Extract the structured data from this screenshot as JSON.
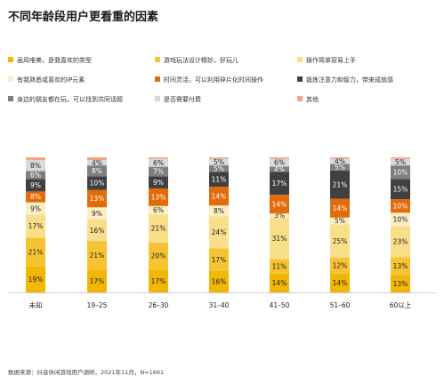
{
  "title": "不同年龄段用户更看重的因素",
  "source": "数据来源：抖音休闲游戏用户调研，2021年11月，N=1661",
  "chart_data": {
    "type": "bar",
    "stacked": true,
    "normalized": true,
    "legend_position": "top",
    "categories": [
      "未知",
      "19–25",
      "26–30",
      "31–40",
      "41–50",
      "51–60",
      "60以上"
    ],
    "series": [
      {
        "name": "画风唯美，是我喜欢的类型",
        "color": "#F2B705",
        "values": [
          19,
          17,
          17,
          16,
          14,
          14,
          13
        ]
      },
      {
        "name": "游戏玩法设计精妙，好玩儿",
        "color": "#F6C433",
        "values": [
          21,
          21,
          20,
          17,
          11,
          12,
          13
        ]
      },
      {
        "name": "操作简单容易上手",
        "color": "#F9DF8A",
        "values": [
          17,
          16,
          21,
          24,
          31,
          25,
          23
        ]
      },
      {
        "name": "有我熟悉或喜欢的IP元素",
        "color": "#FCEFC4",
        "values": [
          9,
          9,
          6,
          8,
          3,
          5,
          10
        ]
      },
      {
        "name": "时间灵活，可以利用碎片化时间操作",
        "color": "#E36C0A",
        "values": [
          8,
          13,
          13,
          14,
          14,
          14,
          10
        ]
      },
      {
        "name": "锻炼注意力和智力，带来成就感",
        "color": "#404040",
        "values": [
          9,
          10,
          9,
          11,
          17,
          21,
          15
        ]
      },
      {
        "name": "身边的朋友都在玩，可以找到共同话题",
        "color": "#7F7F7F",
        "values": [
          6,
          8,
          7,
          5,
          4,
          5,
          10
        ]
      },
      {
        "name": "是否需要付费",
        "color": "#D9D9D9",
        "values": [
          8,
          4,
          6,
          5,
          6,
          4,
          5
        ]
      },
      {
        "name": "其他",
        "color": "#F4A582",
        "values": [
          2,
          2,
          1,
          1,
          1,
          1,
          1
        ]
      }
    ],
    "label_suffix": "%"
  }
}
